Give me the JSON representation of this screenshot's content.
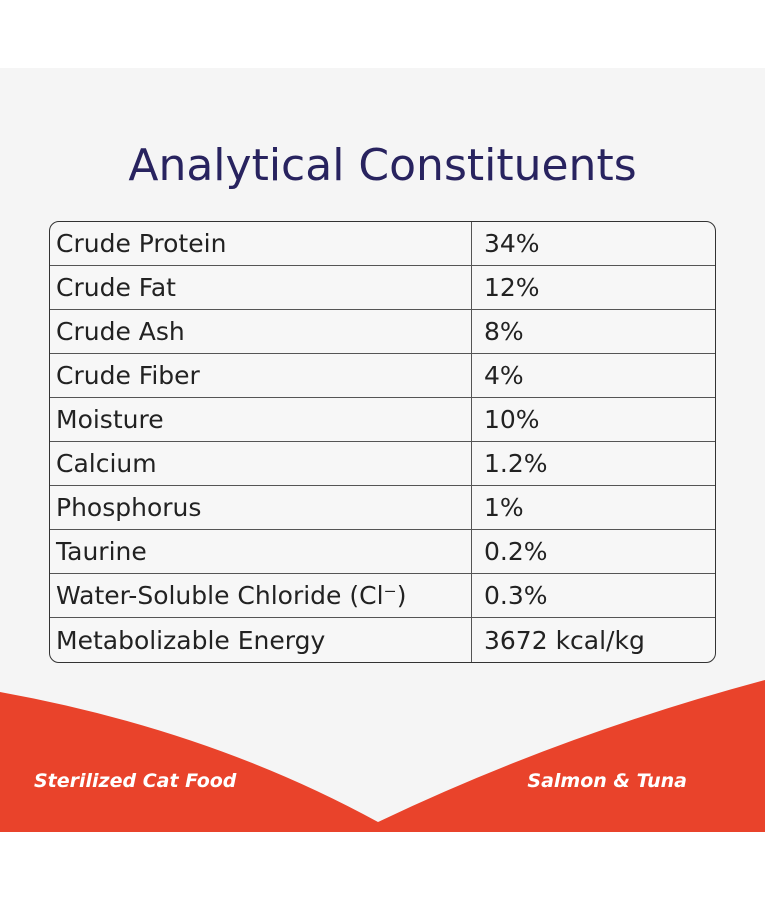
{
  "header": {
    "title": "Analytical Constituents"
  },
  "table": {
    "rows": [
      [
        "Crude Protein",
        "34%"
      ],
      [
        "Crude Fat",
        "12%"
      ],
      [
        "Crude Ash",
        "8%"
      ],
      [
        "Crude Fiber",
        "4%"
      ],
      [
        "Moisture",
        "10%"
      ],
      [
        "Calcium",
        "1.2%"
      ],
      [
        "Phosphorus",
        "1%"
      ],
      [
        "Taurine",
        "0.2%"
      ],
      [
        "Water-Soluble Chloride (Cl⁻)",
        "0.3%"
      ],
      [
        "Metabolizable Energy",
        "3672 kcal/kg"
      ]
    ]
  },
  "footer": {
    "left": "Sterilized Cat Food",
    "right": "Salmon & Tuna"
  }
}
